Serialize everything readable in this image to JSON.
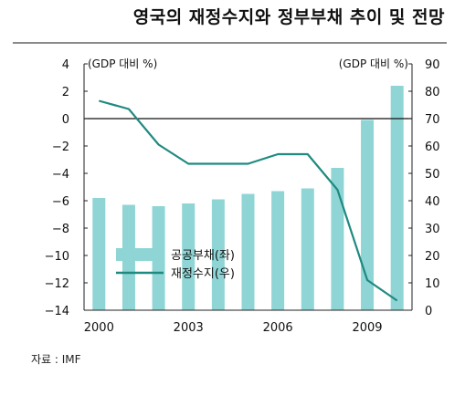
{
  "title": "영국의 재정수지와 정부부채 추이 및 전망",
  "source": "자료 : IMF",
  "colors": {
    "bar": "#8fd5d5",
    "line": "#1f8a80",
    "axis": "#222222"
  },
  "chart_data": {
    "type": "bar+line",
    "left_axis_label": "(GDP 대비 %)",
    "right_axis_label": "(GDP 대비 %)",
    "left_ylim": [
      -14,
      4
    ],
    "right_ylim": [
      0,
      90
    ],
    "left_ticks": [
      "4",
      "2",
      "0",
      "-2",
      "-4",
      "-6",
      "-8",
      "-10",
      "-12",
      "-14"
    ],
    "right_ticks": [
      "90",
      "80",
      "70",
      "60",
      "50",
      "40",
      "30",
      "20",
      "10",
      "0"
    ],
    "x": [
      2000,
      2001,
      2002,
      2003,
      2004,
      2005,
      2006,
      2007,
      2008,
      2009,
      2010
    ],
    "x_tick_labels": [
      {
        "index": 0,
        "label": "2000"
      },
      {
        "index": 3,
        "label": "2003"
      },
      {
        "index": 6,
        "label": "2006"
      },
      {
        "index": 9,
        "label": "2009"
      }
    ],
    "series": [
      {
        "name": "공공부채(좌)",
        "type": "bar",
        "axis": "right",
        "values": [
          41,
          38.5,
          38,
          39,
          40.5,
          42.5,
          43.5,
          44.5,
          52,
          69.5,
          82
        ]
      },
      {
        "name": "재정수지(우)",
        "type": "line",
        "axis": "left",
        "values": [
          1.3,
          0.7,
          -1.9,
          -3.3,
          -3.3,
          -3.3,
          -2.6,
          -2.6,
          -5.2,
          -11.8,
          -13.3
        ]
      }
    ]
  }
}
